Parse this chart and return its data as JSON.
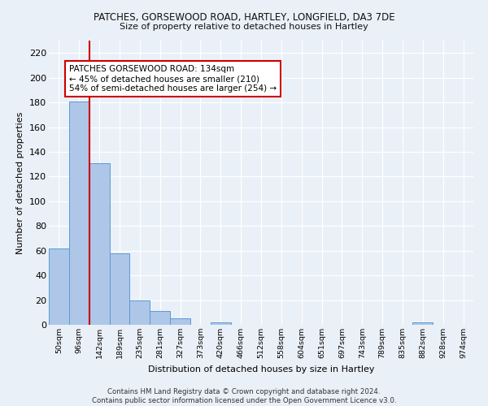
{
  "title1": "PATCHES, GORSEWOOD ROAD, HARTLEY, LONGFIELD, DA3 7DE",
  "title2": "Size of property relative to detached houses in Hartley",
  "xlabel": "Distribution of detached houses by size in Hartley",
  "ylabel": "Number of detached properties",
  "categories": [
    "50sqm",
    "96sqm",
    "142sqm",
    "189sqm",
    "235sqm",
    "281sqm",
    "327sqm",
    "373sqm",
    "420sqm",
    "466sqm",
    "512sqm",
    "558sqm",
    "604sqm",
    "651sqm",
    "697sqm",
    "743sqm",
    "789sqm",
    "835sqm",
    "882sqm",
    "928sqm",
    "974sqm"
  ],
  "values": [
    62,
    181,
    131,
    58,
    20,
    11,
    5,
    0,
    2,
    0,
    0,
    0,
    0,
    0,
    0,
    0,
    0,
    0,
    2,
    0,
    0
  ],
  "bar_color": "#aec6e8",
  "bar_edge_color": "#5b9bd5",
  "red_line_x": 1.5,
  "annotation_text": "PATCHES GORSEWOOD ROAD: 134sqm\n← 45% of detached houses are smaller (210)\n54% of semi-detached houses are larger (254) →",
  "annotation_box_color": "#ffffff",
  "annotation_box_edge": "#cc0000",
  "ylim": [
    0,
    230
  ],
  "yticks": [
    0,
    20,
    40,
    60,
    80,
    100,
    120,
    140,
    160,
    180,
    200,
    220
  ],
  "bg_color": "#eaf0f8",
  "grid_color": "#ffffff",
  "footer": "Contains HM Land Registry data © Crown copyright and database right 2024.\nContains public sector information licensed under the Open Government Licence v3.0."
}
